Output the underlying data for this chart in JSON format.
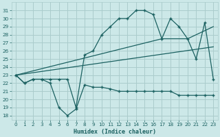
{
  "xlabel": "Humidex (Indice chaleur)",
  "bg_color": "#cce8e8",
  "grid_color": "#aacccc",
  "line_color": "#1a6060",
  "xlim": [
    -0.5,
    23.5
  ],
  "ylim": [
    17.5,
    32.0
  ],
  "yticks": [
    18,
    19,
    20,
    21,
    22,
    23,
    24,
    25,
    26,
    27,
    28,
    29,
    30,
    31
  ],
  "xticks": [
    0,
    1,
    2,
    3,
    4,
    5,
    6,
    7,
    8,
    9,
    10,
    11,
    12,
    13,
    14,
    15,
    16,
    17,
    18,
    19,
    20,
    21,
    22,
    23
  ],
  "line1_x": [
    0,
    1,
    2,
    3,
    4,
    5,
    6,
    7,
    8,
    9,
    10,
    11,
    12,
    13,
    14,
    15,
    16,
    17,
    18,
    19,
    20,
    21,
    22,
    23
  ],
  "line1_y": [
    23.0,
    22.0,
    22.5,
    22.5,
    22.0,
    19.0,
    18.0,
    18.8,
    21.8,
    21.5,
    21.5,
    21.3,
    21.0,
    21.0,
    21.0,
    21.0,
    21.0,
    21.0,
    21.0,
    20.5,
    20.5,
    20.5,
    20.5,
    20.5
  ],
  "line2_x": [
    0,
    1,
    2,
    3,
    4,
    5,
    6,
    7,
    8,
    9,
    10,
    11,
    12,
    13,
    14,
    15,
    16,
    17,
    18,
    19,
    20,
    21,
    22,
    23
  ],
  "line2_y": [
    23.0,
    22.0,
    22.5,
    22.5,
    22.5,
    22.5,
    22.5,
    19.0,
    25.5,
    26.0,
    28.0,
    29.0,
    30.0,
    30.0,
    31.0,
    31.0,
    30.5,
    27.5,
    30.0,
    29.0,
    27.5,
    25.0,
    29.5,
    22.5
  ],
  "line3_x": [
    0,
    17,
    20,
    23
  ],
  "line3_y": [
    23.0,
    27.5,
    27.5,
    29.0
  ],
  "line4_x": [
    0,
    23
  ],
  "line4_y": [
    23.0,
    26.5
  ]
}
